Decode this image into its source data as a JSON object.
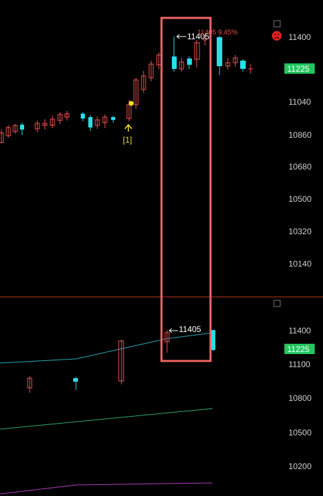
{
  "colors": {
    "background": "#000000",
    "up": "#ef5350",
    "down": "#26e0e8",
    "last_price_bg": "#22c55e",
    "highlight_box": "#f26464",
    "divider": "#c0392b",
    "marker": "#f0e020",
    "ma_cyan": "#2aa6b8",
    "ma_green": "#2fa86a",
    "ma_purple": "#b03ec0",
    "red_icon": "#e02020"
  },
  "top_panel": {
    "axis_labels": [
      "11400",
      "11225",
      "11040",
      "10860",
      "10680",
      "10500",
      "10320",
      "10140"
    ],
    "last_price": "11225",
    "high_label": "11405",
    "change_label": "11405 9.45%",
    "signal_label": "[1]",
    "icons": [
      "square-icon",
      "sad-face-icon"
    ]
  },
  "bottom_panel": {
    "axis_labels": [
      "11400",
      "11100",
      "10800",
      "10500",
      "10200"
    ],
    "last_price": "11225",
    "high_label": "11405",
    "icons": [
      "square-icon"
    ]
  }
}
